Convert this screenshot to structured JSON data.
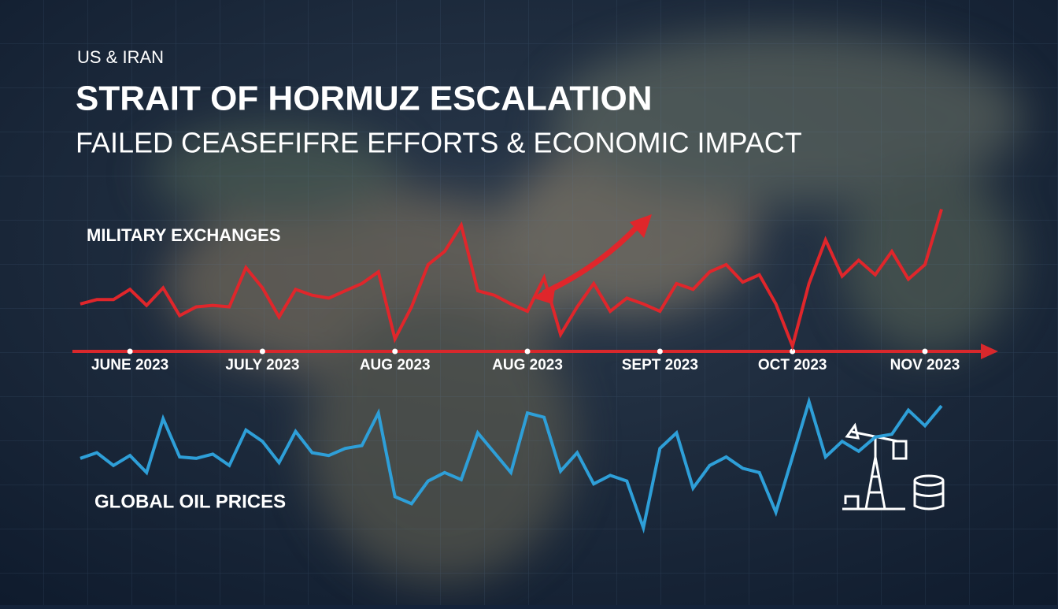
{
  "chart_data": {
    "type": "line",
    "kicker": "US & IRAN",
    "title": "STRAIT OF HORMUZ ESCALATION",
    "subtitle": "FAILED CEASEFIFRE EFFORTS & ECONOMIC IMPACT",
    "categories": [
      null,
      null,
      null,
      "JUNE 2023",
      null,
      null,
      null,
      null,
      null,
      null,
      null,
      "JULY 2023",
      null,
      null,
      null,
      null,
      null,
      null,
      null,
      "AUG 2023",
      null,
      null,
      null,
      null,
      null,
      null,
      null,
      "AUG 2023",
      null,
      null,
      null,
      null,
      null,
      null,
      null,
      "SEPT 2023",
      null,
      null,
      null,
      null,
      null,
      null,
      null,
      "OCT 2023",
      null,
      null,
      null,
      null,
      null,
      null,
      null,
      "NOV 2023",
      null
    ],
    "ylim": [
      0,
      100
    ],
    "series": [
      {
        "name": "MILITARY EXCHANGES",
        "color": "#e0262b",
        "values": [
          32,
          35,
          35,
          42,
          31,
          43,
          24,
          30,
          31,
          30,
          57,
          43,
          23,
          42,
          38,
          36,
          41,
          46,
          54,
          8,
          30,
          59,
          68,
          86,
          41,
          38,
          32,
          27,
          50,
          11,
          30,
          46,
          27,
          36,
          32,
          27,
          46,
          42,
          54,
          59,
          47,
          52,
          32,
          3,
          46,
          76,
          51,
          62,
          52,
          68,
          49,
          59,
          97
        ]
      },
      {
        "name": "GLOBAL OIL PRICES",
        "color": "#2e9fd8",
        "values": [
          49,
          53,
          44,
          51,
          39,
          77,
          50,
          49,
          52,
          44,
          69,
          61,
          46,
          68,
          53,
          51,
          56,
          58,
          81,
          22,
          17,
          33,
          39,
          34,
          67,
          53,
          39,
          81,
          78,
          40,
          53,
          31,
          37,
          33,
          0,
          56,
          67,
          28,
          44,
          50,
          42,
          39,
          11,
          50,
          89,
          50,
          61,
          54,
          64,
          66,
          83,
          72,
          86
        ]
      }
    ]
  }
}
